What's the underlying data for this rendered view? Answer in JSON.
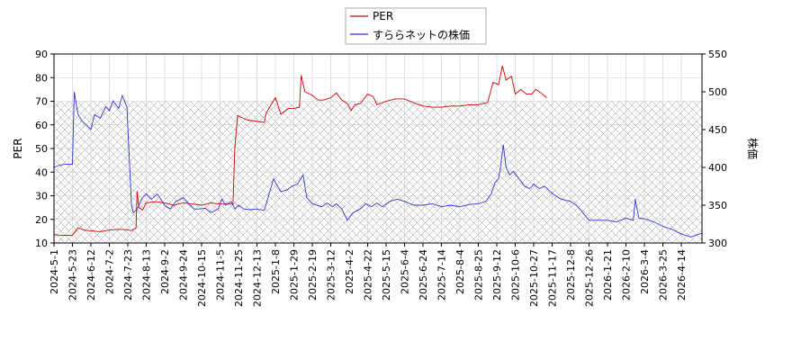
{
  "chart_data": {
    "type": "line",
    "grid": true,
    "legend_position": "top-center",
    "hatched_band": {
      "axis": "left",
      "from": 10,
      "to": 70
    },
    "left_axis": {
      "label": "PER",
      "ylim": [
        10,
        90
      ],
      "ticks": [
        10,
        20,
        30,
        40,
        50,
        60,
        70,
        80,
        90
      ]
    },
    "right_axis": {
      "label": "株価",
      "ylim": [
        300,
        550
      ],
      "ticks": [
        300,
        350,
        400,
        450,
        500,
        550
      ]
    },
    "x_ticks": [
      "2024-5-1",
      "2024-5-23",
      "2024-6-12",
      "2024-7-2",
      "2024-7-23",
      "2024-8-13",
      "2024-9-2",
      "2024-9-24",
      "2024-10-15",
      "2024-11-5",
      "2024-11-25",
      "2024-12-13",
      "2025-1-8",
      "2025-1-29",
      "2025-2-19",
      "2025-3-12",
      "2025-4-2",
      "2025-4-22",
      "2025-5-15",
      "2025-6-4",
      "2025-6-24",
      "2025-7-14",
      "2025-8-4",
      "2025-8-25",
      "2025-9-12",
      "2025-10-6",
      "2025-10-27",
      "2025-11-17",
      "2025-12-8",
      "2025-12-26",
      "2026-1-21",
      "2026-2-10",
      "2026-3-4",
      "2026-3-25",
      "2026-4-14"
    ],
    "series": [
      {
        "name": "PER",
        "axis": "left",
        "color": "#cc0000",
        "points": [
          [
            0,
            13.5
          ],
          [
            0.5,
            13.2
          ],
          [
            1,
            13.3
          ],
          [
            1.3,
            16.5
          ],
          [
            1.6,
            15.5
          ],
          [
            2,
            15.2
          ],
          [
            2.5,
            14.8
          ],
          [
            3,
            15.5
          ],
          [
            3.5,
            15.8
          ],
          [
            4,
            15.6
          ],
          [
            4.2,
            15.2
          ],
          [
            4.45,
            16.5
          ],
          [
            4.5,
            32
          ],
          [
            4.6,
            25
          ],
          [
            4.8,
            24
          ],
          [
            5,
            27
          ],
          [
            5.5,
            27.5
          ],
          [
            6,
            27
          ],
          [
            6.5,
            26
          ],
          [
            7,
            27
          ],
          [
            7.5,
            26.5
          ],
          [
            8,
            26
          ],
          [
            8.5,
            27
          ],
          [
            9,
            26.5
          ],
          [
            9.7,
            26.5
          ],
          [
            9.8,
            50
          ],
          [
            9.95,
            64
          ],
          [
            10.2,
            63
          ],
          [
            10.5,
            62
          ],
          [
            11,
            61.5
          ],
          [
            11.4,
            61
          ],
          [
            11.5,
            65
          ],
          [
            11.8,
            69
          ],
          [
            12,
            71.5
          ],
          [
            12.3,
            64.5
          ],
          [
            12.7,
            67
          ],
          [
            13,
            67
          ],
          [
            13.3,
            67.5
          ],
          [
            13.4,
            81
          ],
          [
            13.6,
            74
          ],
          [
            14,
            72.5
          ],
          [
            14.3,
            70.5
          ],
          [
            14.6,
            70.5
          ],
          [
            15,
            71.5
          ],
          [
            15.3,
            73.5
          ],
          [
            15.6,
            70.5
          ],
          [
            15.9,
            69
          ],
          [
            16.1,
            66
          ],
          [
            16.3,
            68.5
          ],
          [
            16.6,
            69
          ],
          [
            17,
            73
          ],
          [
            17.3,
            72
          ],
          [
            17.5,
            68.5
          ],
          [
            18,
            70
          ],
          [
            18.5,
            71
          ],
          [
            19,
            71
          ],
          [
            19.3,
            70
          ],
          [
            19.6,
            69
          ],
          [
            20,
            68
          ],
          [
            20.5,
            67.5
          ],
          [
            21,
            67.5
          ],
          [
            21.5,
            68
          ],
          [
            22,
            68
          ],
          [
            22.5,
            68.5
          ],
          [
            23,
            68.5
          ],
          [
            23.5,
            69.5
          ],
          [
            23.8,
            78
          ],
          [
            24.1,
            77
          ],
          [
            24.3,
            85
          ],
          [
            24.5,
            79
          ],
          [
            24.8,
            80.5
          ],
          [
            25,
            73
          ],
          [
            25.3,
            75
          ],
          [
            25.6,
            73
          ],
          [
            25.9,
            73
          ],
          [
            26.1,
            75
          ],
          [
            26.4,
            73.5
          ],
          [
            26.7,
            71.5
          ]
        ]
      },
      {
        "name": "すららネットの株価",
        "axis": "right",
        "color": "#3333cc",
        "points": [
          [
            0,
            400
          ],
          [
            0.3,
            403
          ],
          [
            0.6,
            404
          ],
          [
            1,
            404
          ],
          [
            1.1,
            500
          ],
          [
            1.3,
            470
          ],
          [
            1.5,
            462
          ],
          [
            1.8,
            455
          ],
          [
            2,
            450
          ],
          [
            2.2,
            470
          ],
          [
            2.5,
            465
          ],
          [
            2.8,
            480
          ],
          [
            3,
            475
          ],
          [
            3.2,
            488
          ],
          [
            3.5,
            478
          ],
          [
            3.7,
            495
          ],
          [
            3.95,
            480
          ],
          [
            4.2,
            350
          ],
          [
            4.3,
            340
          ],
          [
            4.5,
            345
          ],
          [
            4.8,
            360
          ],
          [
            5,
            365
          ],
          [
            5.3,
            358
          ],
          [
            5.6,
            365
          ],
          [
            6,
            350
          ],
          [
            6.3,
            345
          ],
          [
            6.6,
            355
          ],
          [
            7,
            360
          ],
          [
            7.3,
            352
          ],
          [
            7.6,
            345
          ],
          [
            7.9,
            345
          ],
          [
            8.2,
            346
          ],
          [
            8.5,
            340
          ],
          [
            8.9,
            345
          ],
          [
            9.1,
            358
          ],
          [
            9.3,
            350
          ],
          [
            9.6,
            355
          ],
          [
            9.8,
            345
          ],
          [
            10,
            350
          ],
          [
            10.3,
            345
          ],
          [
            10.6,
            344
          ],
          [
            11,
            345
          ],
          [
            11.4,
            343
          ],
          [
            11.6,
            360
          ],
          [
            11.9,
            385
          ],
          [
            12,
            380
          ],
          [
            12.3,
            368
          ],
          [
            12.6,
            370
          ],
          [
            12.9,
            375
          ],
          [
            13.2,
            378
          ],
          [
            13.5,
            390
          ],
          [
            13.7,
            360
          ],
          [
            14,
            352
          ],
          [
            14.5,
            348
          ],
          [
            14.8,
            353
          ],
          [
            15.1,
            348
          ],
          [
            15.3,
            352
          ],
          [
            15.6,
            345
          ],
          [
            15.9,
            330
          ],
          [
            16.2,
            340
          ],
          [
            16.6,
            345
          ],
          [
            16.9,
            352
          ],
          [
            17.2,
            348
          ],
          [
            17.5,
            353
          ],
          [
            17.8,
            348
          ],
          [
            18.2,
            355
          ],
          [
            18.6,
            358
          ],
          [
            19,
            355
          ],
          [
            19.5,
            350
          ],
          [
            20,
            350
          ],
          [
            20.5,
            352
          ],
          [
            21,
            348
          ],
          [
            21.5,
            350
          ],
          [
            22,
            348
          ],
          [
            22.5,
            351
          ],
          [
            23,
            352
          ],
          [
            23.4,
            355
          ],
          [
            23.7,
            365
          ],
          [
            23.9,
            380
          ],
          [
            24.1,
            385
          ],
          [
            24.2,
            400
          ],
          [
            24.35,
            430
          ],
          [
            24.5,
            400
          ],
          [
            24.7,
            390
          ],
          [
            24.9,
            395
          ],
          [
            25.2,
            385
          ],
          [
            25.5,
            375
          ],
          [
            25.8,
            372
          ],
          [
            26,
            378
          ],
          [
            26.3,
            372
          ],
          [
            26.6,
            375
          ],
          [
            26.9,
            368
          ],
          [
            27.2,
            362
          ],
          [
            27.5,
            358
          ],
          [
            28,
            355
          ],
          [
            28.3,
            350
          ],
          [
            28.6,
            342
          ],
          [
            29,
            330
          ],
          [
            29.5,
            330
          ],
          [
            30,
            330
          ],
          [
            30.5,
            328
          ],
          [
            31,
            333
          ],
          [
            31.4,
            330
          ],
          [
            31.5,
            358
          ],
          [
            31.7,
            333
          ],
          [
            32,
            332
          ],
          [
            32.5,
            328
          ],
          [
            33,
            322
          ],
          [
            33.5,
            318
          ],
          [
            34,
            312
          ],
          [
            34.5,
            308
          ],
          [
            35,
            312
          ],
          [
            35.5,
            314
          ],
          [
            36,
            310
          ]
        ]
      }
    ]
  }
}
